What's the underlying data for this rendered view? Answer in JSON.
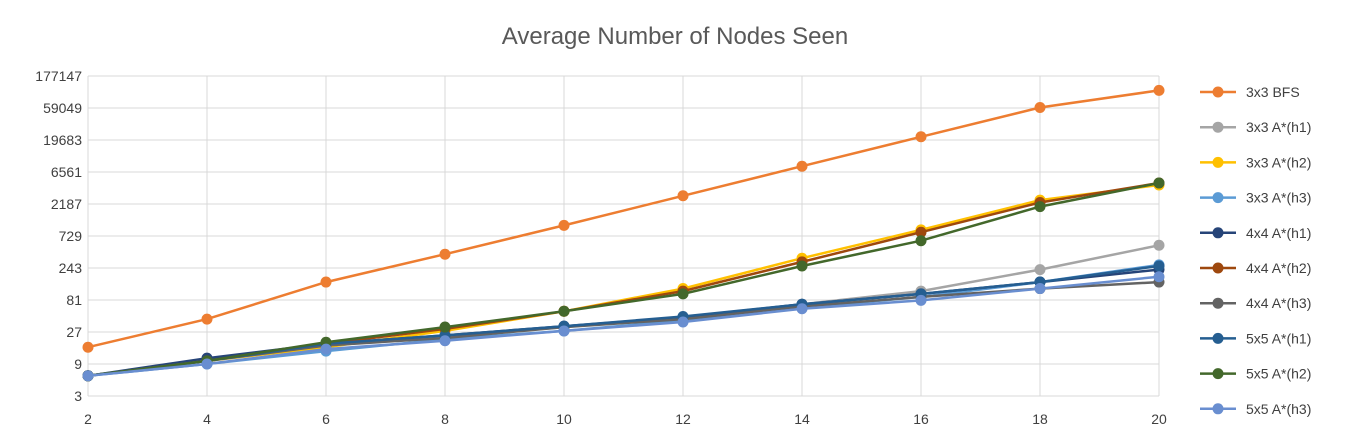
{
  "chart_data": {
    "type": "line",
    "title": "Average Number of Nodes Seen",
    "xlabel": "",
    "ylabel": "",
    "y_scale": "log3",
    "x": [
      2,
      4,
      6,
      8,
      10,
      12,
      14,
      16,
      18,
      20
    ],
    "x_ticks": [
      "2",
      "4",
      "6",
      "8",
      "10",
      "12",
      "14",
      "16",
      "18",
      "20"
    ],
    "y_ticks": [
      "3",
      "9",
      "27",
      "81",
      "243",
      "729",
      "2187",
      "6561",
      "19683",
      "59049",
      "177147"
    ],
    "ylim": [
      3,
      177147
    ],
    "grid": true,
    "legend_position": "right",
    "series": [
      {
        "name": "3x3 BFS",
        "color": "#ED7D31",
        "values": [
          16,
          42,
          150,
          390,
          1050,
          2900,
          8000,
          22000,
          60000,
          108000
        ]
      },
      {
        "name": "3x3 A*(h1)",
        "color": "#A5A5A5",
        "values": [
          6,
          10,
          17,
          23,
          32,
          45,
          70,
          110,
          230,
          530
        ]
      },
      {
        "name": "3x3 A*(h2)",
        "color": "#FFC000",
        "values": [
          6,
          10,
          16,
          28,
          55,
          120,
          340,
          900,
          2500,
          4200
        ]
      },
      {
        "name": "3x3 A*(h3)",
        "color": "#5B9BD5",
        "values": [
          6,
          9,
          14,
          21,
          28,
          40,
          62,
          90,
          150,
          270
        ]
      },
      {
        "name": "4x4 A*(h1)",
        "color": "#264478",
        "values": [
          6,
          11,
          18,
          24,
          33,
          45,
          70,
          100,
          150,
          230
        ]
      },
      {
        "name": "4x4 A*(h2)",
        "color": "#9E480E",
        "values": [
          6,
          10,
          18,
          30,
          55,
          110,
          300,
          830,
          2300,
          4500
        ]
      },
      {
        "name": "4x4 A*(h3)",
        "color": "#636363",
        "values": [
          6,
          10,
          17,
          22,
          32,
          42,
          65,
          90,
          120,
          150
        ]
      },
      {
        "name": "5x5 A*(h1)",
        "color": "#255E91",
        "values": [
          6,
          10,
          18,
          24,
          33,
          46,
          70,
          100,
          150,
          260
        ]
      },
      {
        "name": "5x5 A*(h2)",
        "color": "#43682B",
        "values": [
          6,
          10,
          19,
          32,
          55,
          100,
          260,
          620,
          2000,
          4500
        ]
      },
      {
        "name": "5x5 A*(h3)",
        "color": "#698ED0",
        "values": [
          6,
          9,
          15,
          20,
          28,
          38,
          60,
          80,
          120,
          180
        ]
      }
    ]
  }
}
